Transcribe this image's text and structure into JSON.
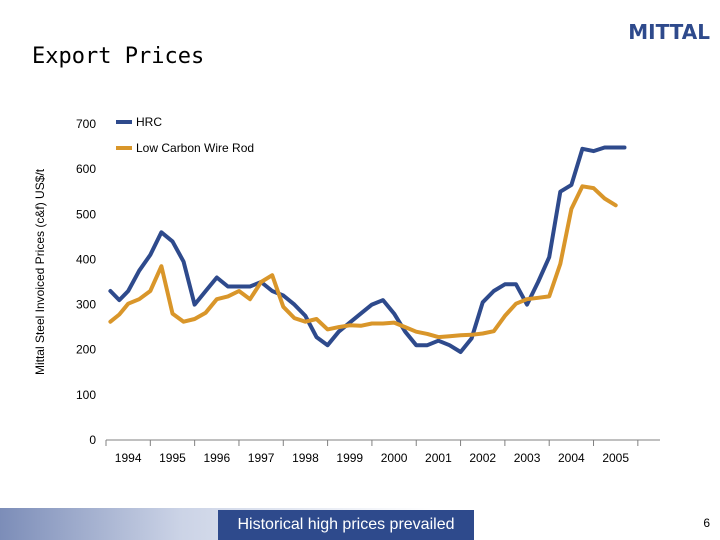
{
  "header": {
    "logo_text": "MITTAL",
    "title": "Export Prices"
  },
  "footer": {
    "banner_text": "Historical high prices prevailed",
    "page_number": "6"
  },
  "colors": {
    "hrc": "#2e4a8c",
    "wire_rod": "#d9962a",
    "axis": "#808080",
    "banner": "#2e4a8c"
  },
  "chart_data": {
    "type": "line",
    "title": "",
    "xlabel": "",
    "ylabel": "Mittal Steel Invoiced Prices (c&f) US$/t",
    "ylim": [
      0,
      700
    ],
    "xlim": [
      1993.5,
      2006.0
    ],
    "y_ticks": [
      0,
      100,
      200,
      300,
      400,
      500,
      600,
      700
    ],
    "x_tick_labels": [
      "1994",
      "1995",
      "1996",
      "1997",
      "1998",
      "1999",
      "2000",
      "2001",
      "2002",
      "2003",
      "2004",
      "2005"
    ],
    "grid": false,
    "legend_position": "top-left",
    "series": [
      {
        "name": "HRC",
        "color": "#2e4a8c",
        "x": [
          1993.6,
          1993.8,
          1994.0,
          1994.25,
          1994.5,
          1994.75,
          1995.0,
          1995.25,
          1995.5,
          1995.75,
          1996.0,
          1996.25,
          1996.5,
          1996.75,
          1997.0,
          1997.25,
          1997.5,
          1997.75,
          1998.0,
          1998.25,
          1998.5,
          1998.75,
          1999.0,
          1999.25,
          1999.5,
          1999.75,
          2000.0,
          2000.25,
          2000.5,
          2000.75,
          2001.0,
          2001.25,
          2001.5,
          2001.75,
          2002.0,
          2002.25,
          2002.5,
          2002.75,
          2003.0,
          2003.25,
          2003.5,
          2003.75,
          2004.0,
          2004.25,
          2004.5,
          2004.75,
          2005.0,
          2005.2
        ],
        "values": [
          330,
          310,
          330,
          375,
          410,
          460,
          440,
          395,
          300,
          330,
          360,
          340,
          340,
          340,
          350,
          330,
          320,
          300,
          275,
          228,
          210,
          240,
          260,
          280,
          300,
          310,
          280,
          240,
          210,
          210,
          220,
          210,
          195,
          225,
          305,
          330,
          345,
          345,
          300,
          350,
          405,
          550,
          565,
          645,
          640,
          648,
          648,
          648
        ]
      },
      {
        "name": "Low Carbon Wire Rod",
        "color": "#d9962a",
        "x": [
          1993.6,
          1993.8,
          1994.0,
          1994.25,
          1994.5,
          1994.75,
          1995.0,
          1995.25,
          1995.5,
          1995.75,
          1996.0,
          1996.25,
          1996.5,
          1996.75,
          1997.0,
          1997.25,
          1997.5,
          1997.75,
          1998.0,
          1998.25,
          1998.5,
          1998.75,
          1999.0,
          1999.25,
          1999.5,
          1999.75,
          2000.0,
          2000.25,
          2000.5,
          2000.75,
          2001.0,
          2001.25,
          2001.5,
          2001.75,
          2002.0,
          2002.25,
          2002.5,
          2002.75,
          2003.0,
          2003.25,
          2003.5,
          2003.75,
          2004.0,
          2004.25,
          2004.5,
          2004.75,
          2005.0
        ],
        "values": [
          262,
          278,
          302,
          312,
          330,
          385,
          280,
          262,
          268,
          282,
          312,
          318,
          330,
          312,
          350,
          365,
          295,
          270,
          262,
          268,
          245,
          250,
          254,
          253,
          258,
          258,
          260,
          250,
          240,
          235,
          228,
          230,
          232,
          233,
          236,
          241,
          275,
          302,
          312,
          315,
          318,
          390,
          512,
          562,
          558,
          535,
          520
        ]
      }
    ]
  }
}
